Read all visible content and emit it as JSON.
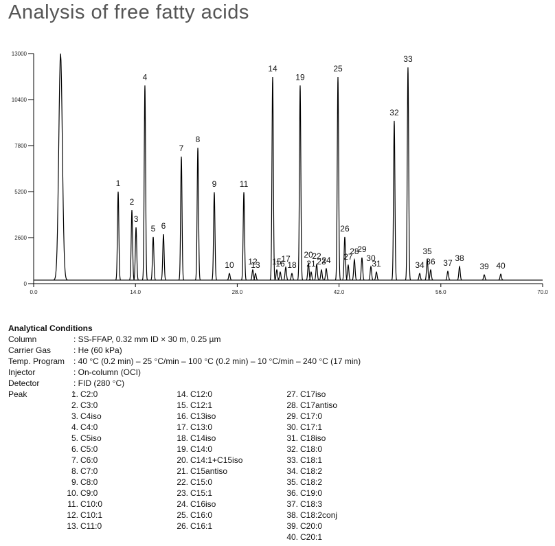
{
  "chart_data": {
    "type": "chromatogram",
    "title": "Analysis of free fatty acids",
    "xlim": [
      0,
      70
    ],
    "xticks": [
      {
        "value": 0,
        "label": "0.0"
      },
      {
        "value": 14,
        "label": "14.0"
      },
      {
        "value": 28,
        "label": "28.0"
      },
      {
        "value": 42,
        "label": "42.0"
      },
      {
        "value": 56,
        "label": "56.0"
      },
      {
        "value": 70,
        "label": "70.0"
      }
    ],
    "ylim": [
      0,
      13000
    ],
    "yticks": [
      0,
      2600,
      5200,
      7800,
      10400,
      13000
    ],
    "color": "#000000",
    "baseline": 200,
    "peaks": [
      {
        "label": null,
        "x": 3.7,
        "y": 13000
      },
      {
        "label": "1",
        "x": 11.62,
        "y": 5200
      },
      {
        "label": "2",
        "x": 13.51,
        "y": 4150
      },
      {
        "label": "3",
        "x": 14.08,
        "y": 3180
      },
      {
        "label": "4",
        "x": 15.3,
        "y": 11200
      },
      {
        "label": "5",
        "x": 16.44,
        "y": 2640
      },
      {
        "label": "6",
        "x": 17.85,
        "y": 2790
      },
      {
        "label": "7",
        "x": 20.31,
        "y": 7180
      },
      {
        "label": "8",
        "x": 22.58,
        "y": 7680
      },
      {
        "label": "9",
        "x": 24.84,
        "y": 5160
      },
      {
        "label": "10",
        "x": 26.92,
        "y": 580
      },
      {
        "label": "11",
        "x": 28.91,
        "y": 5160
      },
      {
        "label": "12",
        "x": 30.13,
        "y": 780
      },
      {
        "label": "13",
        "x": 30.51,
        "y": 580
      },
      {
        "label": "14",
        "x": 32.87,
        "y": 11680
      },
      {
        "label": "15",
        "x": 33.44,
        "y": 780
      },
      {
        "label": "16",
        "x": 33.91,
        "y": 660
      },
      {
        "label": "17",
        "x": 34.67,
        "y": 930
      },
      {
        "label": "18",
        "x": 35.52,
        "y": 580
      },
      {
        "label": "19",
        "x": 36.65,
        "y": 11200
      },
      {
        "label": "20",
        "x": 37.79,
        "y": 1160
      },
      {
        "label": "21",
        "x": 38.16,
        "y": 660
      },
      {
        "label": "22",
        "x": 38.92,
        "y": 1090
      },
      {
        "label": "23",
        "x": 39.58,
        "y": 780
      },
      {
        "label": "24",
        "x": 40.24,
        "y": 850
      },
      {
        "label": "25",
        "x": 41.85,
        "y": 11680
      },
      {
        "label": "26",
        "x": 42.79,
        "y": 2640
      },
      {
        "label": "27",
        "x": 43.26,
        "y": 1050
      },
      {
        "label": "28",
        "x": 44.11,
        "y": 1360
      },
      {
        "label": "29",
        "x": 45.15,
        "y": 1470
      },
      {
        "label": "30",
        "x": 46.38,
        "y": 970
      },
      {
        "label": "31",
        "x": 47.14,
        "y": 660
      },
      {
        "label": "32",
        "x": 49.59,
        "y": 9200
      },
      {
        "label": "33",
        "x": 51.48,
        "y": 12220
      },
      {
        "label": "34",
        "x": 53.09,
        "y": 580
      },
      {
        "label": "35",
        "x": 54.13,
        "y": 1360
      },
      {
        "label": "36",
        "x": 54.6,
        "y": 780
      },
      {
        "label": "37",
        "x": 56.96,
        "y": 700
      },
      {
        "label": "38",
        "x": 58.57,
        "y": 970
      },
      {
        "label": "39",
        "x": 61.97,
        "y": 500
      },
      {
        "label": "40",
        "x": 64.24,
        "y": 540
      }
    ]
  },
  "conditions": {
    "heading": "Analytical Conditions",
    "rows": [
      {
        "label": "Column",
        "value": ": SS-FFAP, 0.32 mm ID × 30 m, 0.25 µm"
      },
      {
        "label": "Carrier Gas",
        "value": ": He (60 kPa)"
      },
      {
        "label": "Temp. Program",
        "value": ": 40 °C (0.2 min) – 25 °C/min – 100 °C (0.2 min) – 10 °C/min – 240 °C (17 min)"
      },
      {
        "label": "Injector",
        "value": ": On-column (OCI)"
      },
      {
        "label": "Detector",
        "value": ": FID (280 °C)"
      },
      {
        "label": "Peak",
        "value": ":"
      }
    ],
    "peak_list": [
      [
        [
          "1.",
          "C2:0"
        ],
        [
          "2.",
          "C3:0"
        ],
        [
          "3.",
          "C4iso"
        ],
        [
          "4.",
          "C4:0"
        ],
        [
          "5.",
          "C5iso"
        ],
        [
          "6.",
          "C5:0"
        ],
        [
          "7.",
          "C6:0"
        ],
        [
          "8.",
          "C7:0"
        ],
        [
          "9.",
          "C8:0"
        ],
        [
          "10.",
          "C9:0"
        ],
        [
          "11.",
          "C10:0"
        ],
        [
          "12.",
          "C10:1"
        ],
        [
          "13.",
          "C11:0"
        ]
      ],
      [
        [
          "14.",
          "C12:0"
        ],
        [
          "15.",
          "C12:1"
        ],
        [
          "16.",
          "C13iso"
        ],
        [
          "17.",
          "C13:0"
        ],
        [
          "18.",
          "C14iso"
        ],
        [
          "19.",
          "C14:0"
        ],
        [
          "20.",
          "C14:1+C15iso"
        ],
        [
          "21.",
          "C15antiso"
        ],
        [
          "22.",
          "C15:0"
        ],
        [
          "23.",
          "C15:1"
        ],
        [
          "24.",
          "C16iso"
        ],
        [
          "25.",
          "C16:0"
        ],
        [
          "26.",
          "C16:1"
        ]
      ],
      [
        [
          "27.",
          "C17iso"
        ],
        [
          "28.",
          "C17antiso"
        ],
        [
          "29.",
          "C17:0"
        ],
        [
          "30.",
          "C17:1"
        ],
        [
          "31.",
          "C18iso"
        ],
        [
          "32.",
          "C18:0"
        ],
        [
          "33.",
          "C18:1"
        ],
        [
          "34.",
          "C18:2"
        ],
        [
          "35.",
          "C18:2"
        ],
        [
          "36.",
          "C19:0"
        ],
        [
          "37.",
          "C18:3"
        ],
        [
          "38.",
          "C18:2conj"
        ],
        [
          "39.",
          "C20:0"
        ],
        [
          "40.",
          "C20:1"
        ]
      ]
    ]
  }
}
